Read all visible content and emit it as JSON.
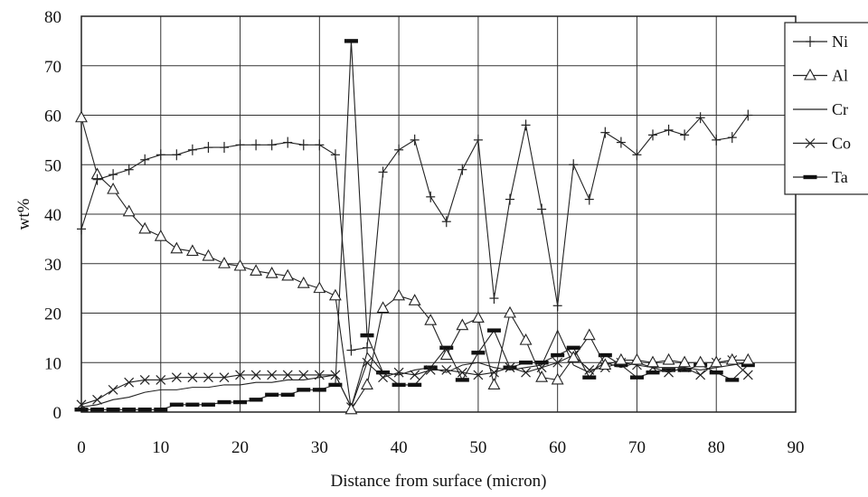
{
  "chart_data": {
    "type": "line",
    "xlabel": "Distance from surface (micron)",
    "ylabel": "wt%",
    "xlim": [
      0,
      90
    ],
    "ylim": [
      0,
      80
    ],
    "xticks": [
      0,
      10,
      20,
      30,
      40,
      50,
      60,
      70,
      80,
      90
    ],
    "yticks": [
      0,
      10,
      20,
      30,
      40,
      50,
      60,
      70,
      80
    ],
    "grid": true,
    "legend_position": "right",
    "x": [
      0,
      2,
      4,
      6,
      8,
      10,
      12,
      14,
      16,
      18,
      20,
      22,
      24,
      26,
      28,
      30,
      32,
      34,
      36,
      38,
      40,
      42,
      44,
      46,
      48,
      50,
      52,
      54,
      56,
      58,
      60,
      62,
      64,
      66,
      68,
      70,
      72,
      74,
      76,
      78,
      80,
      82,
      84
    ],
    "series": [
      {
        "name": "Ni",
        "marker": "plus",
        "values": [
          37,
          47,
          48,
          49,
          51,
          52,
          52,
          53,
          53.5,
          53.5,
          54,
          54,
          54,
          54.5,
          54,
          54,
          52,
          12.5,
          13,
          48.5,
          53,
          55,
          43.5,
          38.5,
          49,
          55,
          23,
          43,
          58,
          41,
          21.5,
          50,
          43,
          56.5,
          54.5,
          52,
          56,
          57,
          56,
          59.5,
          55,
          55.5,
          60
        ]
      },
      {
        "name": "Al",
        "marker": "triangle",
        "values": [
          59.5,
          48,
          45,
          40.5,
          37,
          35.5,
          33,
          32.5,
          31.5,
          30,
          29.5,
          28.5,
          28,
          27.5,
          26,
          25,
          23.5,
          0.5,
          5.5,
          21,
          23.5,
          22.5,
          18.5,
          11.5,
          17.5,
          19,
          5.5,
          20,
          14.5,
          7,
          6.5,
          11,
          15.5,
          9.5,
          10.5,
          10.5,
          10,
          10.5,
          10,
          10,
          10,
          10.5,
          10.5
        ]
      },
      {
        "name": "Cr",
        "marker": "none",
        "values": [
          1,
          1.5,
          2.5,
          3,
          4,
          4.5,
          4.5,
          5,
          5,
          5.5,
          5.5,
          6,
          6,
          6.5,
          6.5,
          7,
          7.5,
          1,
          12,
          8,
          7.5,
          8.5,
          9,
          8,
          9.5,
          10,
          9,
          8.5,
          9,
          9.5,
          16.5,
          9.5,
          8,
          10,
          9,
          10,
          9,
          9,
          9,
          8.5,
          9,
          9.5,
          10
        ]
      },
      {
        "name": "Co",
        "marker": "x",
        "values": [
          1.5,
          2.5,
          4.5,
          6,
          6.5,
          6.5,
          7,
          7,
          7,
          7,
          7.5,
          7.5,
          7.5,
          7.5,
          7.5,
          7.5,
          7.5,
          1,
          10,
          7,
          8,
          7.5,
          8.5,
          8.5,
          8,
          7.5,
          8,
          9,
          8,
          9,
          10,
          11.5,
          8.5,
          9,
          10,
          9.5,
          9,
          8,
          9,
          7.5,
          10,
          10.5,
          7.5
        ]
      },
      {
        "name": "Ta",
        "marker": "dash",
        "values": [
          0.5,
          0.5,
          0.5,
          0.5,
          0.5,
          0.5,
          1.5,
          1.5,
          1.5,
          2,
          2,
          2.5,
          3.5,
          3.5,
          4.5,
          4.5,
          5.5,
          75,
          15.5,
          8,
          5.5,
          5.5,
          9,
          13,
          6.5,
          12,
          16.5,
          9,
          10,
          10,
          11.5,
          13,
          7,
          11.5,
          9.5,
          7,
          8,
          8.5,
          8.5,
          9.5,
          8,
          6.5,
          9.5
        ]
      }
    ]
  }
}
